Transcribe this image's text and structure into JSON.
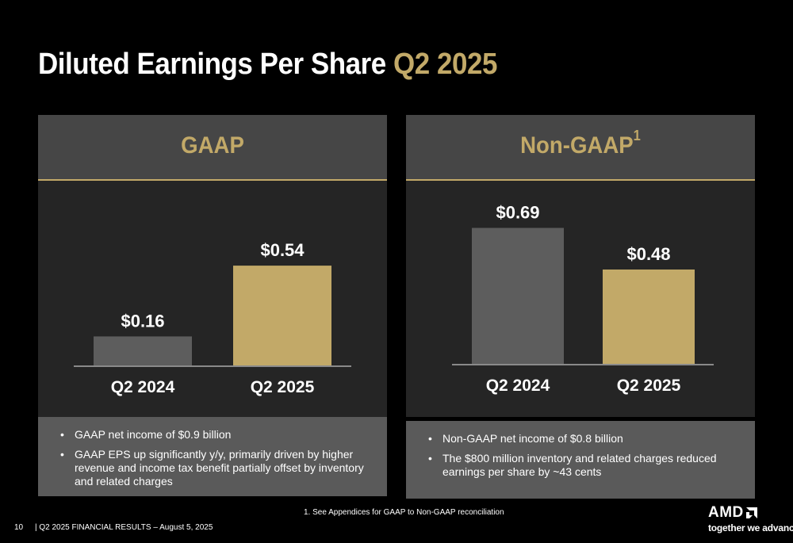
{
  "title": {
    "main": "Diluted Earnings Per Share",
    "accent": "Q2 2025"
  },
  "panels": [
    {
      "header": "GAAP",
      "footnote_ref": "",
      "bullets": [
        "GAAP net income of $0.9 billion",
        "GAAP EPS up significantly y/y, primarily driven by higher revenue and income tax benefit partially offset by inventory and related charges"
      ]
    },
    {
      "header": "Non-GAAP",
      "footnote_ref": "1",
      "bullets": [
        "Non-GAAP net income of $0.8 billion",
        "The $800 million inventory and related charges reduced earnings per share by ~43 cents"
      ]
    }
  ],
  "chart_data": [
    {
      "type": "bar",
      "title": "GAAP",
      "categories": [
        "Q2 2024",
        "Q2 2025"
      ],
      "values": [
        0.16,
        0.54
      ],
      "labels": [
        "$0.16",
        "$0.54"
      ],
      "colors": [
        "#5d5d5d",
        "#c2a968"
      ],
      "ylim": [
        0,
        0.8
      ]
    },
    {
      "type": "bar",
      "title": "Non-GAAP",
      "categories": [
        "Q2 2024",
        "Q2 2025"
      ],
      "values": [
        0.69,
        0.48
      ],
      "labels": [
        "$0.69",
        "$0.48"
      ],
      "colors": [
        "#5d5d5d",
        "#c2a968"
      ],
      "ylim": [
        0,
        0.8
      ]
    }
  ],
  "footnote": "1. See Appendices for GAAP to Non-GAAP reconciliation",
  "footer": {
    "page": "10",
    "text": "|  Q2 2025 FINANCIAL RESULTS – August 5, 2025"
  },
  "logo": {
    "brand": "AMD",
    "tagline": "together we advance_"
  }
}
